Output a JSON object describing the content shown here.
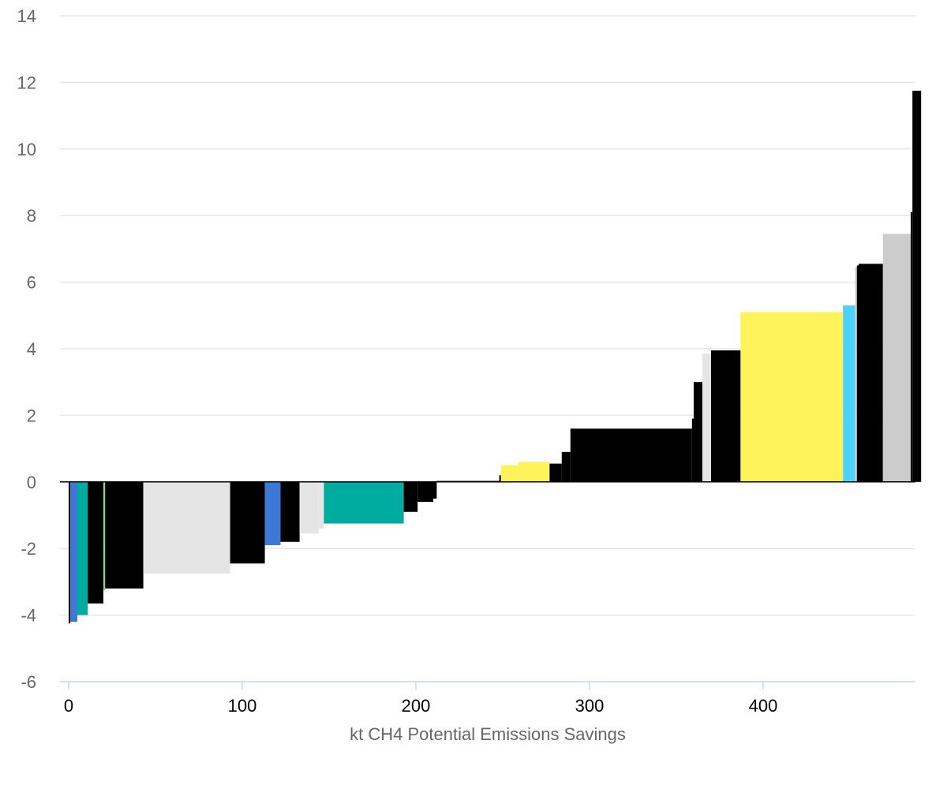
{
  "chart_data": {
    "type": "bar",
    "subtype": "variable-width marginal abatement cost curve",
    "title": "",
    "xlabel": "kt CH4 Potential Emissions Savings",
    "ylabel": "",
    "xlim": [
      -3,
      491
    ],
    "ylim": [
      -6,
      14
    ],
    "x_ticks": [
      0,
      100,
      200,
      300,
      400
    ],
    "y_ticks": [
      -6,
      -4,
      -2,
      0,
      2,
      4,
      6,
      8,
      10,
      12,
      14
    ],
    "grid": "horizontal",
    "legend": "none",
    "bars": [
      {
        "x0": 0,
        "x1": 1,
        "value": -4.25,
        "color": "#000000"
      },
      {
        "x0": 1,
        "x1": 5,
        "value": -4.2,
        "color": "#3b78d8"
      },
      {
        "x0": 5,
        "x1": 11,
        "value": -4.0,
        "color": "#00ab9f"
      },
      {
        "x0": 11,
        "x1": 20,
        "value": -3.65,
        "color": "#000000"
      },
      {
        "x0": 20,
        "x1": 21,
        "value": -3.25,
        "color": "#6be58c"
      },
      {
        "x0": 21,
        "x1": 43,
        "value": -3.2,
        "color": "#000000"
      },
      {
        "x0": 43,
        "x1": 93,
        "value": -2.75,
        "color": "#e5e5e5"
      },
      {
        "x0": 93,
        "x1": 113,
        "value": -2.45,
        "color": "#000000"
      },
      {
        "x0": 113,
        "x1": 122,
        "value": -1.9,
        "color": "#3b78d8"
      },
      {
        "x0": 122,
        "x1": 133,
        "value": -1.8,
        "color": "#000000"
      },
      {
        "x0": 133,
        "x1": 144,
        "value": -1.55,
        "color": "#e5e5e5"
      },
      {
        "x0": 144,
        "x1": 147,
        "value": -1.4,
        "color": "#e5e5e5"
      },
      {
        "x0": 147,
        "x1": 193,
        "value": -1.25,
        "color": "#00ab9f"
      },
      {
        "x0": 193,
        "x1": 201,
        "value": -0.9,
        "color": "#000000"
      },
      {
        "x0": 201,
        "x1": 210,
        "value": -0.6,
        "color": "#000000"
      },
      {
        "x0": 210,
        "x1": 212,
        "value": -0.5,
        "color": "#000000"
      },
      {
        "x0": 212,
        "x1": 248,
        "value": 0.03,
        "color": "#000000"
      },
      {
        "x0": 248,
        "x1": 249,
        "value": 0.2,
        "color": "#000000"
      },
      {
        "x0": 249,
        "x1": 259,
        "value": 0.5,
        "color": "#fef35a"
      },
      {
        "x0": 259,
        "x1": 277,
        "value": 0.6,
        "color": "#fef35a"
      },
      {
        "x0": 277,
        "x1": 284,
        "value": 0.55,
        "color": "#000000"
      },
      {
        "x0": 284,
        "x1": 289,
        "value": 0.9,
        "color": "#000000"
      },
      {
        "x0": 289,
        "x1": 359,
        "value": 1.6,
        "color": "#000000"
      },
      {
        "x0": 359,
        "x1": 360,
        "value": 1.9,
        "color": "#000000"
      },
      {
        "x0": 360,
        "x1": 365,
        "value": 3.0,
        "color": "#000000"
      },
      {
        "x0": 365,
        "x1": 370,
        "value": 3.85,
        "color": "#e5e5e5"
      },
      {
        "x0": 370,
        "x1": 387,
        "value": 3.95,
        "color": "#000000"
      },
      {
        "x0": 387,
        "x1": 446,
        "value": 5.1,
        "color": "#fef35a"
      },
      {
        "x0": 446,
        "x1": 453,
        "value": 5.3,
        "color": "#4dd2ff"
      },
      {
        "x0": 453,
        "x1": 454,
        "value": 6.45,
        "color": "#cccccc"
      },
      {
        "x0": 454,
        "x1": 455,
        "value": 6.5,
        "color": "#000000"
      },
      {
        "x0": 455,
        "x1": 469,
        "value": 6.55,
        "color": "#000000"
      },
      {
        "x0": 469,
        "x1": 485,
        "value": 7.45,
        "color": "#cccccc"
      },
      {
        "x0": 485,
        "x1": 486,
        "value": 8.1,
        "color": "#000000"
      },
      {
        "x0": 486,
        "x1": 491,
        "value": 11.75,
        "color": "#000000"
      }
    ]
  },
  "colors": {
    "grid": "#e6e6e6",
    "x_axis_line": "#ccd6eb",
    "tick_text": "#666666",
    "x_tick_text": "#000000",
    "zero_line": "#000000"
  }
}
